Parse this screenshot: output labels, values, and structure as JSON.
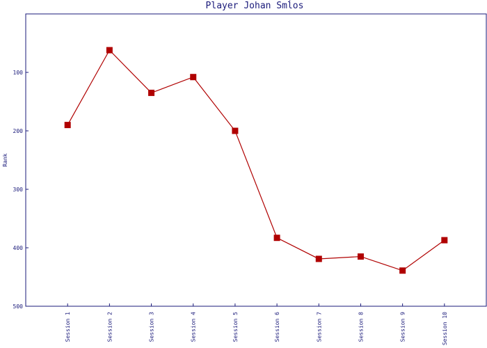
{
  "chart_data": {
    "type": "line",
    "title": "Player Johan Smĺos",
    "y_label": "Rank",
    "categories": [
      "Session 1",
      "Session 2",
      "Session 3",
      "Session 4",
      "Session 5",
      "Session 6",
      "Session 7",
      "Session 8",
      "Session 9",
      "Session 10"
    ],
    "series": [
      {
        "name": "Rank",
        "color": "#b00000",
        "values": [
          190,
          62,
          135,
          108,
          200,
          383,
          419,
          415,
          439,
          387
        ]
      }
    ],
    "ylim": [
      0,
      500
    ],
    "yticks": [
      100,
      200,
      300,
      400,
      500
    ],
    "y_inverted": true
  }
}
